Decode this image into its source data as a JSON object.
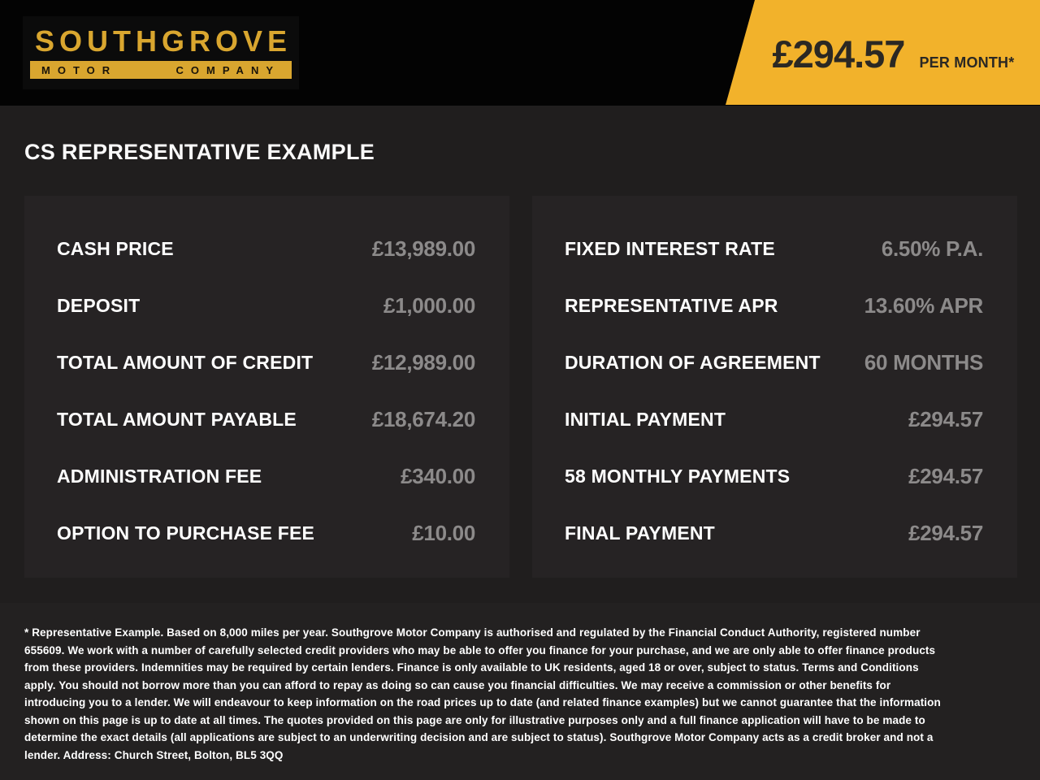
{
  "header": {
    "logo": {
      "name": "SOUTHGROVE",
      "word_motor": "MOTOR",
      "word_company": "COMPANY"
    },
    "price_banner": {
      "amount": "£294.57",
      "period": "PER MONTH*"
    }
  },
  "page_title": "CS REPRESENTATIVE EXAMPLE",
  "tables": {
    "left": {
      "rows": [
        {
          "label": "CASH PRICE",
          "value": "£13,989.00"
        },
        {
          "label": "DEPOSIT",
          "value": "£1,000.00"
        },
        {
          "label": "TOTAL AMOUNT OF CREDIT",
          "value": "£12,989.00"
        },
        {
          "label": "TOTAL AMOUNT PAYABLE",
          "value": "£18,674.20"
        },
        {
          "label": "ADMINISTRATION FEE",
          "value": "£340.00"
        },
        {
          "label": "OPTION TO PURCHASE FEE",
          "value": "£10.00"
        }
      ]
    },
    "right": {
      "rows": [
        {
          "label": "FIXED INTEREST RATE",
          "value": "6.50% P.A."
        },
        {
          "label": "REPRESENTATIVE APR",
          "value": "13.60% APR"
        },
        {
          "label": "DURATION OF AGREEMENT",
          "value": "60 MONTHS"
        },
        {
          "label": "INITIAL PAYMENT",
          "value": "£294.57"
        },
        {
          "label": "58 MONTHLY PAYMENTS",
          "value": "£294.57"
        },
        {
          "label": "FINAL PAYMENT",
          "value": "£294.57"
        }
      ]
    }
  },
  "footer": {
    "disclaimer": "* Representative Example. Based on 8,000 miles per year. Southgrove Motor Company is authorised and regulated by the Financial Conduct Authority, registered number 655609. We work with a number of carefully selected credit providers who may be able to offer you finance for your purchase, and we are only able to offer finance products from these providers. Indemnities may be required by certain lenders. Finance is only available to UK residents, aged 18 or over, subject to status. Terms and Conditions apply. You should not borrow more than you can afford to repay as doing so can cause you financial difficulties. We may receive a commission or other benefits for introducing you to a lender. We will endeavour to keep information on the road prices up to date (and related finance examples) but we cannot guarantee that the information shown on this page is up to date at all times. The quotes provided on this page are only for illustrative purposes only and a full finance application will have to be made to determine the exact details (all applications are subject to an underwriting decision and are subject to status). Southgrove Motor Company acts as a credit broker and not a lender. Address: Church Street, Bolton, BL5 3QQ"
  },
  "colors": {
    "accent_yellow": "#F2B22B",
    "logo_gold": "#D9A62F",
    "header_black": "#030303",
    "page_background": "#201E1E",
    "panel_background": "#262324",
    "footer_background": "#232121",
    "value_gray": "#8C8A8A"
  }
}
